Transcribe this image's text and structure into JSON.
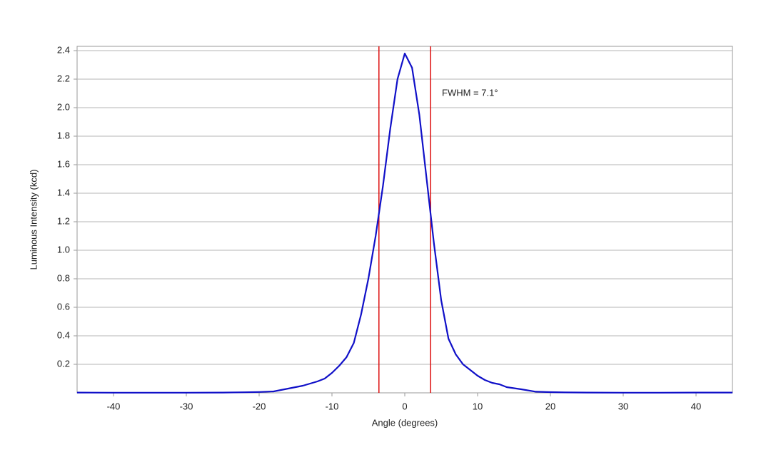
{
  "chart_data": {
    "type": "line",
    "annotation": "FWHM = 7.1°",
    "x_label": "Angle (degrees)",
    "y_label": "Luminous Intensity (kcd)",
    "x": [
      -45,
      -40,
      -35,
      -30,
      -25,
      -22,
      -20,
      -18,
      -16,
      -14,
      -12,
      -11,
      -10,
      -9,
      -8,
      -7,
      -6,
      -5,
      -4,
      -3,
      -2,
      -1,
      0,
      1,
      2,
      3,
      4,
      5,
      6,
      7,
      8,
      9,
      10,
      11,
      12,
      13,
      14,
      16,
      18,
      20,
      22,
      25,
      30,
      35,
      40,
      45
    ],
    "series": [
      {
        "color": "#1010c8",
        "values": [
          0.002,
          0.001,
          0.001,
          0.001,
          0.002,
          0.004,
          0.006,
          0.01,
          0.03,
          0.05,
          0.08,
          0.1,
          0.14,
          0.19,
          0.25,
          0.35,
          0.55,
          0.8,
          1.1,
          1.45,
          1.85,
          2.2,
          2.38,
          2.28,
          1.95,
          1.5,
          1.05,
          0.65,
          0.38,
          0.27,
          0.2,
          0.16,
          0.12,
          0.09,
          0.07,
          0.06,
          0.04,
          0.025,
          0.008,
          0.005,
          0.003,
          0.002,
          0.001,
          0.001,
          0.002,
          0.002
        ]
      }
    ],
    "vlines": [
      -3.55,
      3.55
    ],
    "vline_color": "#dd1111",
    "xlim": [
      -45,
      45
    ],
    "xticks": [
      -40,
      -30,
      -20,
      -10,
      0,
      10,
      20,
      30,
      40
    ],
    "ylim": [
      0,
      2.43
    ],
    "yticks": [
      0.2,
      0.4,
      0.6,
      0.8,
      {
        "value": 1,
        "label": "1.0"
      },
      1.2,
      1.4,
      1.6,
      1.8,
      {
        "value": 2,
        "label": "2.0"
      },
      2.2,
      2.4
    ],
    "grid": true
  }
}
